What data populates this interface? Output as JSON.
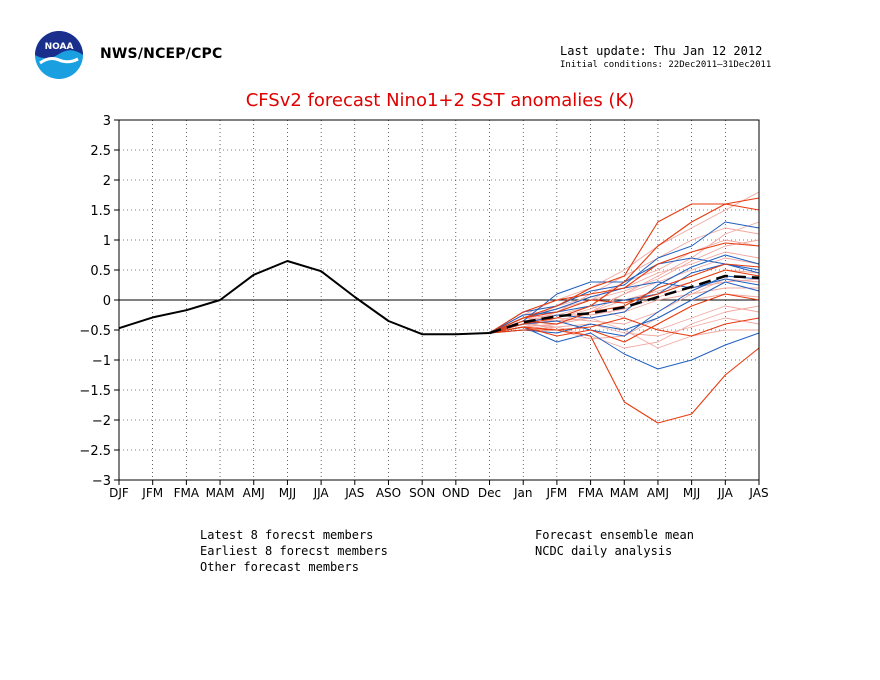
{
  "header": {
    "org": "NWS/NCEP/CPC",
    "last_update": "Last update: Thu Jan 12 2012",
    "initial_conditions": "Initial conditions: 22Dec2011–31Dec2011"
  },
  "colors": {
    "latest": "#2060c0",
    "earliest": "#e63b10",
    "other": "#f0a8a0",
    "mean": "#000000",
    "analysis": "#000000",
    "title": "#e00000"
  },
  "legend": {
    "latest": "Latest 8 forecst members",
    "earliest": "Earliest 8 forecst members",
    "other": "Other forecast members",
    "mean": "Forecast ensemble mean",
    "analysis": "NCDC daily analysis"
  },
  "chart_data": {
    "type": "line",
    "title": "CFSv2 forecast Nino1+2 SST anomalies (K)",
    "categories": [
      "DJF",
      "JFM",
      "FMA",
      "MAM",
      "AMJ",
      "MJJ",
      "JJA",
      "JAS",
      "ASO",
      "SON",
      "OND",
      "Dec",
      "Jan",
      "JFM",
      "FMA",
      "MAM",
      "AMJ",
      "MJJ",
      "JJA",
      "JAS"
    ],
    "ylim": [
      -3,
      3
    ],
    "yticks": [
      "3",
      "2.5",
      "2",
      "1.5",
      "1",
      "0.5",
      "0",
      "−0.5",
      "−1",
      "−1.5",
      "−2",
      "−2.5",
      "−3"
    ],
    "grid": true,
    "analysis": {
      "name": "NCDC daily analysis",
      "values": [
        -0.47,
        -0.29,
        -0.17,
        0.0,
        0.42,
        0.65,
        0.48,
        0.05,
        -0.35,
        -0.57,
        -0.57,
        -0.55
      ]
    },
    "mean": {
      "name": "Forecast ensemble mean",
      "start_index": 11,
      "values": [
        -0.55,
        -0.37,
        -0.27,
        -0.22,
        -0.12,
        0.05,
        0.22,
        0.4,
        0.37
      ]
    },
    "latest": [
      [
        -0.55,
        -0.35,
        0.1,
        0.3,
        0.3,
        0.6,
        0.7,
        0.6,
        0.5
      ],
      [
        -0.55,
        -0.45,
        -0.7,
        -0.55,
        -0.9,
        -1.15,
        -1.0,
        -0.75,
        -0.55
      ],
      [
        -0.55,
        -0.2,
        -0.1,
        0.15,
        0.25,
        0.7,
        0.9,
        1.3,
        1.2
      ],
      [
        -0.55,
        -0.4,
        -0.25,
        -0.3,
        -0.2,
        0.25,
        0.55,
        0.75,
        0.6
      ],
      [
        -0.55,
        -0.3,
        -0.15,
        0.05,
        0.2,
        0.3,
        0.2,
        0.35,
        0.25
      ],
      [
        -0.55,
        -0.5,
        -0.55,
        -0.4,
        -0.5,
        -0.3,
        0.0,
        0.3,
        0.15
      ],
      [
        -0.55,
        -0.4,
        -0.35,
        -0.5,
        -0.6,
        -0.2,
        0.15,
        0.4,
        0.35
      ],
      [
        -0.55,
        -0.25,
        -0.2,
        -0.1,
        0.0,
        0.1,
        0.45,
        0.6,
        0.45
      ]
    ],
    "earliest": [
      [
        -0.55,
        -0.45,
        -0.5,
        -0.6,
        -1.7,
        -2.05,
        -1.9,
        -1.25,
        -0.8
      ],
      [
        -0.55,
        -0.3,
        -0.1,
        0.2,
        0.4,
        1.3,
        1.6,
        1.6,
        1.5
      ],
      [
        -0.55,
        -0.4,
        -0.3,
        -0.1,
        0.3,
        0.9,
        1.3,
        1.6,
        1.7
      ],
      [
        -0.55,
        -0.5,
        -0.5,
        -0.45,
        -0.3,
        -0.5,
        -0.6,
        -0.4,
        -0.3
      ],
      [
        -0.55,
        -0.2,
        0.0,
        0.1,
        0.2,
        0.6,
        0.8,
        0.95,
        0.9
      ],
      [
        -0.55,
        -0.35,
        -0.4,
        -0.2,
        -0.1,
        0.2,
        0.4,
        0.6,
        0.55
      ],
      [
        -0.55,
        -0.45,
        -0.6,
        -0.5,
        -0.7,
        -0.4,
        -0.1,
        0.1,
        0.0
      ],
      [
        -0.55,
        -0.3,
        -0.2,
        0.0,
        -0.05,
        0.1,
        0.3,
        0.5,
        0.4
      ]
    ],
    "other": [
      [
        -0.55,
        -0.3,
        -0.2,
        0.1,
        0.4,
        0.7,
        1.0,
        1.2,
        1.1
      ],
      [
        -0.55,
        -0.4,
        -0.35,
        -0.3,
        -0.5,
        -0.8,
        -0.6,
        -0.5,
        -0.5
      ],
      [
        -0.55,
        -0.25,
        0.0,
        0.2,
        0.5,
        0.9,
        1.2,
        1.5,
        1.8
      ],
      [
        -0.55,
        -0.5,
        -0.45,
        -0.6,
        -0.8,
        -0.7,
        -0.4,
        -0.2,
        -0.1
      ],
      [
        -0.55,
        -0.35,
        -0.3,
        -0.15,
        0.1,
        0.3,
        0.5,
        0.7,
        0.6
      ],
      [
        -0.55,
        -0.45,
        -0.4,
        -0.3,
        -0.2,
        0.0,
        0.1,
        0.2,
        0.2
      ],
      [
        -0.55,
        -0.3,
        -0.25,
        -0.1,
        -0.3,
        -0.5,
        -0.3,
        -0.1,
        -0.2
      ],
      [
        -0.55,
        -0.4,
        -0.2,
        0.0,
        0.3,
        0.5,
        0.8,
        1.0,
        0.9
      ],
      [
        -0.55,
        -0.35,
        -0.5,
        -0.65,
        -0.6,
        -0.3,
        0.0,
        0.1,
        0.05
      ],
      [
        -0.55,
        -0.2,
        -0.1,
        0.05,
        0.2,
        0.45,
        0.6,
        0.8,
        0.7
      ],
      [
        -0.55,
        -0.45,
        -0.3,
        -0.35,
        -0.4,
        -0.2,
        0.1,
        0.35,
        0.3
      ],
      [
        -0.55,
        -0.3,
        -0.35,
        -0.2,
        0.0,
        0.15,
        0.3,
        0.5,
        0.45
      ],
      [
        -0.55,
        -0.4,
        -0.45,
        -0.4,
        -0.55,
        -0.6,
        -0.45,
        -0.3,
        -0.4
      ],
      [
        -0.55,
        -0.25,
        -0.15,
        0.0,
        0.15,
        0.35,
        0.65,
        0.9,
        1.0
      ],
      [
        -0.55,
        -0.35,
        -0.25,
        -0.25,
        -0.15,
        0.05,
        0.2,
        0.3,
        0.35
      ],
      [
        -0.55,
        -0.5,
        -0.4,
        -0.2,
        0.1,
        0.4,
        0.7,
        1.1,
        1.3
      ]
    ]
  }
}
